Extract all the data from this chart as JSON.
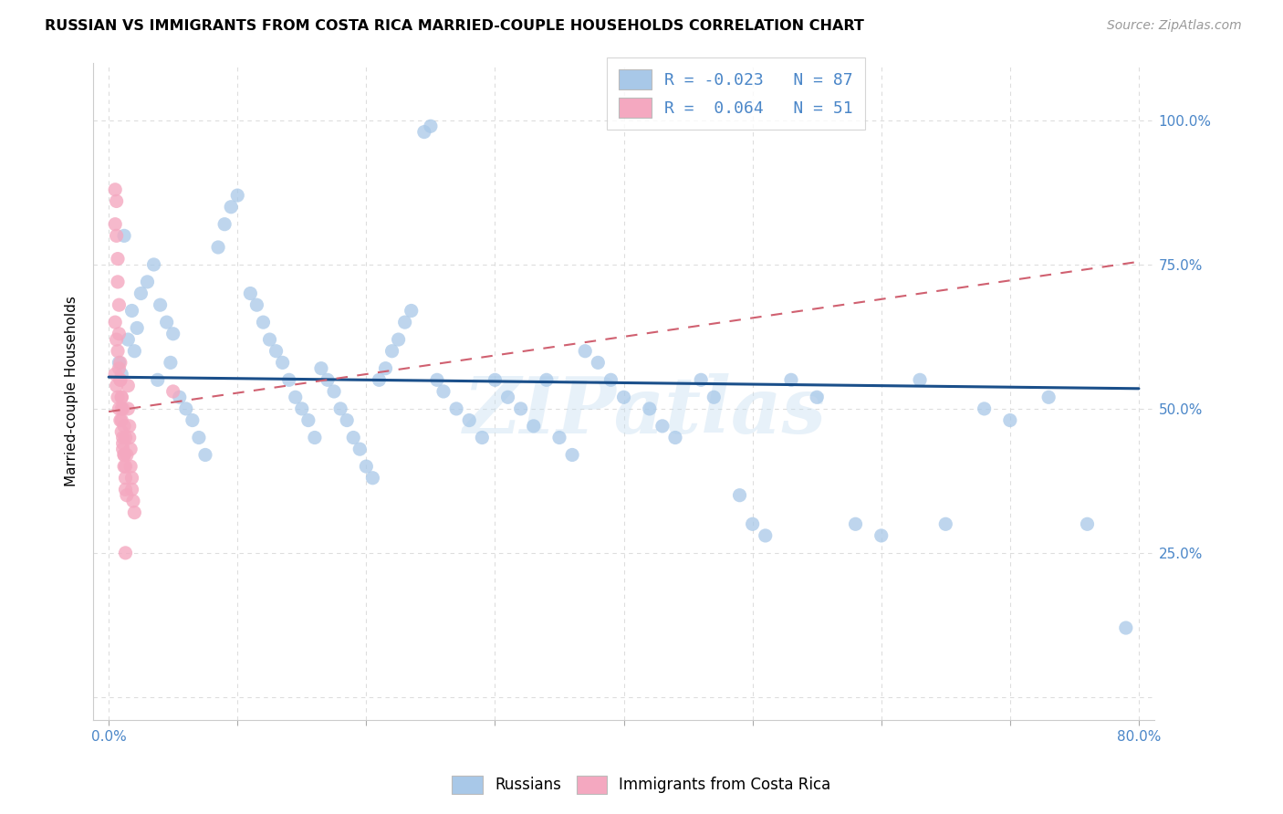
{
  "title": "RUSSIAN VS IMMIGRANTS FROM COSTA RICA MARRIED-COUPLE HOUSEHOLDS CORRELATION CHART",
  "source": "Source: ZipAtlas.com",
  "ylabel": "Married-couple Households",
  "legend_blue_label": "R = -0.023   N = 87",
  "legend_pink_label": "R =  0.064   N = 51",
  "legend_blue_label2": "Russians",
  "legend_pink_label2": "Immigrants from Costa Rica",
  "blue_color": "#a8c8e8",
  "pink_color": "#f4a8c0",
  "blue_line_color": "#1a4f8a",
  "pink_line_color": "#d06070",
  "blue_line_start_x": 0.0,
  "blue_line_start_y": 0.555,
  "blue_line_end_x": 0.8,
  "blue_line_end_y": 0.535,
  "pink_line_start_x": 0.0,
  "pink_line_start_y": 0.495,
  "pink_line_end_x": 0.8,
  "pink_line_end_y": 0.755,
  "watermark": "ZIPatlas",
  "background_color": "#ffffff",
  "grid_color": "#dddddd",
  "axis_color": "#4a86c8",
  "ytick_values": [
    0.0,
    0.25,
    0.5,
    0.75,
    1.0
  ],
  "ytick_labels_right": [
    "",
    "25.0%",
    "50.0%",
    "75.0%",
    "100.0%"
  ],
  "xtick_values": [
    0.0,
    0.1,
    0.2,
    0.3,
    0.4,
    0.5,
    0.6,
    0.7,
    0.8
  ],
  "xtick_labels": [
    "0.0%",
    "",
    "",
    "",
    "",
    "",
    "",
    "",
    "80.0%"
  ],
  "blue_scatter_x": [
    0.01,
    0.008,
    0.015,
    0.022,
    0.018,
    0.025,
    0.03,
    0.035,
    0.012,
    0.04,
    0.045,
    0.05,
    0.038,
    0.055,
    0.06,
    0.065,
    0.07,
    0.048,
    0.075,
    0.02,
    0.085,
    0.09,
    0.095,
    0.1,
    0.11,
    0.115,
    0.12,
    0.125,
    0.13,
    0.135,
    0.14,
    0.145,
    0.15,
    0.155,
    0.16,
    0.165,
    0.17,
    0.175,
    0.18,
    0.185,
    0.19,
    0.195,
    0.2,
    0.205,
    0.21,
    0.215,
    0.22,
    0.225,
    0.23,
    0.235,
    0.245,
    0.25,
    0.255,
    0.26,
    0.27,
    0.28,
    0.29,
    0.3,
    0.31,
    0.32,
    0.33,
    0.34,
    0.35,
    0.36,
    0.37,
    0.38,
    0.39,
    0.4,
    0.42,
    0.43,
    0.44,
    0.46,
    0.47,
    0.49,
    0.5,
    0.51,
    0.53,
    0.55,
    0.58,
    0.6,
    0.63,
    0.65,
    0.68,
    0.7,
    0.73,
    0.76,
    0.79
  ],
  "blue_scatter_y": [
    0.56,
    0.58,
    0.62,
    0.64,
    0.67,
    0.7,
    0.72,
    0.75,
    0.8,
    0.68,
    0.65,
    0.63,
    0.55,
    0.52,
    0.5,
    0.48,
    0.45,
    0.58,
    0.42,
    0.6,
    0.78,
    0.82,
    0.85,
    0.87,
    0.7,
    0.68,
    0.65,
    0.62,
    0.6,
    0.58,
    0.55,
    0.52,
    0.5,
    0.48,
    0.45,
    0.57,
    0.55,
    0.53,
    0.5,
    0.48,
    0.45,
    0.43,
    0.4,
    0.38,
    0.55,
    0.57,
    0.6,
    0.62,
    0.65,
    0.67,
    0.98,
    0.99,
    0.55,
    0.53,
    0.5,
    0.48,
    0.45,
    0.55,
    0.52,
    0.5,
    0.47,
    0.55,
    0.45,
    0.42,
    0.6,
    0.58,
    0.55,
    0.52,
    0.5,
    0.47,
    0.45,
    0.55,
    0.52,
    0.35,
    0.3,
    0.28,
    0.55,
    0.52,
    0.3,
    0.28,
    0.55,
    0.3,
    0.5,
    0.48,
    0.52,
    0.3,
    0.12
  ],
  "pink_scatter_x": [
    0.005,
    0.005,
    0.006,
    0.006,
    0.007,
    0.007,
    0.008,
    0.008,
    0.009,
    0.009,
    0.01,
    0.01,
    0.01,
    0.011,
    0.011,
    0.012,
    0.012,
    0.013,
    0.013,
    0.014,
    0.015,
    0.015,
    0.016,
    0.016,
    0.017,
    0.017,
    0.018,
    0.018,
    0.019,
    0.02,
    0.005,
    0.006,
    0.007,
    0.008,
    0.009,
    0.01,
    0.011,
    0.012,
    0.013,
    0.014,
    0.005,
    0.006,
    0.007,
    0.008,
    0.009,
    0.01,
    0.011,
    0.012,
    0.013,
    0.05,
    0.013
  ],
  "pink_scatter_y": [
    0.88,
    0.82,
    0.86,
    0.8,
    0.76,
    0.72,
    0.68,
    0.63,
    0.58,
    0.55,
    0.52,
    0.5,
    0.48,
    0.45,
    0.43,
    0.42,
    0.4,
    0.38,
    0.36,
    0.35,
    0.54,
    0.5,
    0.47,
    0.45,
    0.43,
    0.4,
    0.38,
    0.36,
    0.34,
    0.32,
    0.65,
    0.62,
    0.6,
    0.57,
    0.55,
    0.52,
    0.5,
    0.47,
    0.45,
    0.42,
    0.56,
    0.54,
    0.52,
    0.5,
    0.48,
    0.46,
    0.44,
    0.42,
    0.4,
    0.53,
    0.25
  ]
}
